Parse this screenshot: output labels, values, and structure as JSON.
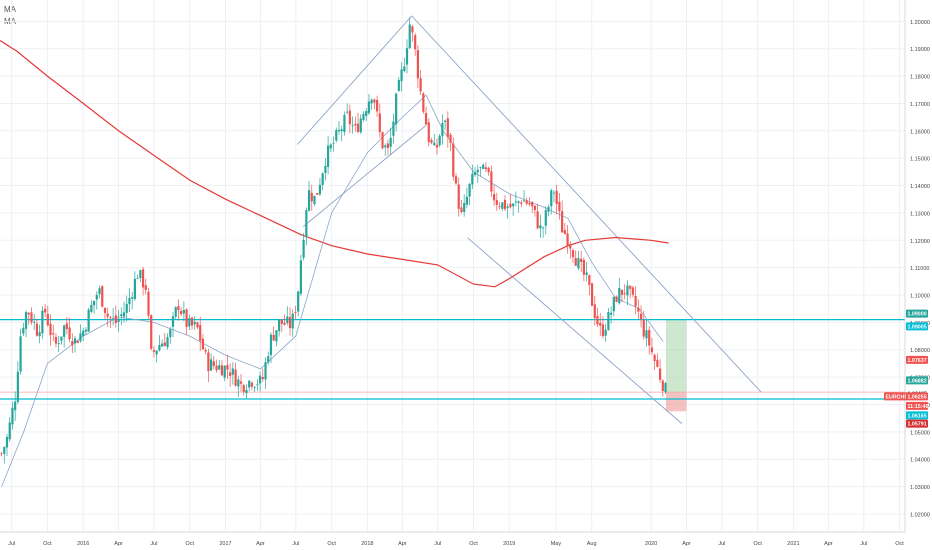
{
  "legend": {
    "ma1": "MA",
    "ma2": "MA"
  },
  "colors": {
    "up": "#26a69a",
    "down": "#ef5350",
    "ma_long": "#e53935",
    "ma_short": "#8aa6c7",
    "channel": "#90a4c8",
    "support": "#00bcd4",
    "grid": "#eef0f3"
  },
  "chart_data": {
    "type": "candlestick",
    "symbol": "EURCHF",
    "ylim": [
      1.0134,
      1.2078
    ],
    "xlim": [
      "2015-06-01",
      "2021-10-15"
    ],
    "yticks": [
      "1.20000",
      "1.19000",
      "1.18000",
      "1.17000",
      "1.16000",
      "1.15000",
      "1.14000",
      "1.13000",
      "1.12000",
      "1.11000",
      "1.10000",
      "1.09000",
      "1.08000",
      "1.07000",
      "1.06000",
      "1.05000",
      "1.04000",
      "1.03000",
      "1.02000"
    ],
    "xticks": [
      {
        "label": "Jul",
        "date": "2015-07-01"
      },
      {
        "label": "Oct",
        "date": "2015-10-01"
      },
      {
        "label": "2016",
        "date": "2016-01-01"
      },
      {
        "label": "Apr",
        "date": "2016-04-01"
      },
      {
        "label": "Jul",
        "date": "2016-07-01"
      },
      {
        "label": "Oct",
        "date": "2016-10-01"
      },
      {
        "label": "2017",
        "date": "2017-01-01"
      },
      {
        "label": "Apr",
        "date": "2017-04-01"
      },
      {
        "label": "Jul",
        "date": "2017-07-01"
      },
      {
        "label": "Oct",
        "date": "2017-10-01"
      },
      {
        "label": "2018",
        "date": "2018-01-01"
      },
      {
        "label": "Apr",
        "date": "2018-04-01"
      },
      {
        "label": "Jul",
        "date": "2018-07-01"
      },
      {
        "label": "Oct",
        "date": "2018-10-01"
      },
      {
        "label": "2019",
        "date": "2019-01-01"
      },
      {
        "label": "May",
        "date": "2019-05-01"
      },
      {
        "label": "Aug",
        "date": "2019-08-01"
      },
      {
        "label": "2020",
        "date": "2020-01-01"
      },
      {
        "label": "Apr",
        "date": "2020-04-01"
      },
      {
        "label": "Jul",
        "date": "2020-07-01"
      },
      {
        "label": "Oct",
        "date": "2020-10-01"
      },
      {
        "label": "2021",
        "date": "2021-01-01"
      },
      {
        "label": "Apr",
        "date": "2021-04-01"
      },
      {
        "label": "Jul",
        "date": "2021-07-01"
      },
      {
        "label": "Oct",
        "date": "2021-10-01"
      }
    ],
    "price_path": [
      [
        "2015-06-05",
        1.042
      ],
      [
        "2015-06-20",
        1.048
      ],
      [
        "2015-07-10",
        1.063
      ],
      [
        "2015-07-25",
        1.087
      ],
      [
        "2015-08-10",
        1.095
      ],
      [
        "2015-09-05",
        1.087
      ],
      [
        "2015-09-25",
        1.094
      ],
      [
        "2015-10-20",
        1.081
      ],
      [
        "2015-11-15",
        1.089
      ],
      [
        "2015-12-10",
        1.083
      ],
      [
        "2016-01-01",
        1.087
      ],
      [
        "2016-01-20",
        1.095
      ],
      [
        "2016-02-10",
        1.102
      ],
      [
        "2016-03-05",
        1.092
      ],
      [
        "2016-03-25",
        1.09
      ],
      [
        "2016-04-20",
        1.095
      ],
      [
        "2016-05-20",
        1.108
      ],
      [
        "2016-06-10",
        1.103
      ],
      [
        "2016-06-24",
        1.078
      ],
      [
        "2016-07-15",
        1.082
      ],
      [
        "2016-08-10",
        1.085
      ],
      [
        "2016-09-01",
        1.097
      ],
      [
        "2016-09-25",
        1.089
      ],
      [
        "2016-10-20",
        1.088
      ],
      [
        "2016-11-15",
        1.075
      ],
      [
        "2016-12-10",
        1.074
      ],
      [
        "2017-01-10",
        1.073
      ],
      [
        "2017-02-10",
        1.067
      ],
      [
        "2017-03-10",
        1.069
      ],
      [
        "2017-04-05",
        1.068
      ],
      [
        "2017-04-25",
        1.083
      ],
      [
        "2017-05-20",
        1.09
      ],
      [
        "2017-06-20",
        1.089
      ],
      [
        "2017-07-05",
        1.099
      ],
      [
        "2017-07-15",
        1.115
      ],
      [
        "2017-08-01",
        1.138
      ],
      [
        "2017-08-20",
        1.135
      ],
      [
        "2017-09-15",
        1.15
      ],
      [
        "2017-10-15",
        1.158
      ],
      [
        "2017-11-10",
        1.165
      ],
      [
        "2017-12-01",
        1.16
      ],
      [
        "2017-12-25",
        1.168
      ],
      [
        "2018-01-15",
        1.175
      ],
      [
        "2018-02-05",
        1.156
      ],
      [
        "2018-02-25",
        1.152
      ],
      [
        "2018-03-15",
        1.17
      ],
      [
        "2018-04-05",
        1.185
      ],
      [
        "2018-04-20",
        1.199
      ],
      [
        "2018-05-01",
        1.192
      ],
      [
        "2018-05-20",
        1.172
      ],
      [
        "2018-06-10",
        1.156
      ],
      [
        "2018-06-25",
        1.152
      ],
      [
        "2018-07-15",
        1.164
      ],
      [
        "2018-08-01",
        1.157
      ],
      [
        "2018-08-15",
        1.14
      ],
      [
        "2018-09-01",
        1.128
      ],
      [
        "2018-09-20",
        1.139
      ],
      [
        "2018-10-10",
        1.146
      ],
      [
        "2018-11-05",
        1.144
      ],
      [
        "2018-11-25",
        1.135
      ],
      [
        "2018-12-15",
        1.133
      ],
      [
        "2019-01-10",
        1.132
      ],
      [
        "2019-02-01",
        1.135
      ],
      [
        "2019-02-25",
        1.133
      ],
      [
        "2019-03-25",
        1.123
      ],
      [
        "2019-04-15",
        1.134
      ],
      [
        "2019-04-25",
        1.139
      ],
      [
        "2019-05-15",
        1.125
      ],
      [
        "2019-06-10",
        1.118
      ],
      [
        "2019-06-25",
        1.112
      ],
      [
        "2019-07-20",
        1.105
      ],
      [
        "2019-08-10",
        1.093
      ],
      [
        "2019-08-25",
        1.086
      ],
      [
        "2019-09-15",
        1.092
      ],
      [
        "2019-10-05",
        1.1
      ],
      [
        "2019-10-25",
        1.102
      ],
      [
        "2019-11-10",
        1.099
      ],
      [
        "2019-11-25",
        1.095
      ],
      [
        "2019-12-10",
        1.088
      ],
      [
        "2019-12-25",
        1.083
      ],
      [
        "2020-01-10",
        1.076
      ],
      [
        "2020-01-25",
        1.07
      ],
      [
        "2020-02-05",
        1.066
      ],
      [
        "2020-02-12",
        1.0625
      ]
    ],
    "ma_long": [
      [
        "2015-06-01",
        1.193
      ],
      [
        "2015-07-15",
        1.189
      ],
      [
        "2015-10-01",
        1.18
      ],
      [
        "2016-01-01",
        1.17
      ],
      [
        "2016-04-01",
        1.16
      ],
      [
        "2016-07-01",
        1.151
      ],
      [
        "2016-10-01",
        1.142
      ],
      [
        "2017-01-01",
        1.135
      ],
      [
        "2017-04-01",
        1.129
      ],
      [
        "2017-07-15",
        1.122
      ],
      [
        "2017-10-01",
        1.118
      ],
      [
        "2018-01-01",
        1.115
      ],
      [
        "2018-04-01",
        1.113
      ],
      [
        "2018-07-01",
        1.111
      ],
      [
        "2018-10-01",
        1.104
      ],
      [
        "2018-11-25",
        1.103
      ],
      [
        "2019-01-01",
        1.106
      ],
      [
        "2019-04-01",
        1.114
      ],
      [
        "2019-06-01",
        1.118
      ],
      [
        "2019-07-15",
        1.12
      ],
      [
        "2019-10-01",
        1.121
      ],
      [
        "2020-01-01",
        1.12
      ],
      [
        "2020-02-15",
        1.119
      ]
    ],
    "ma_short": [
      [
        "2015-06-05",
        1.03
      ],
      [
        "2015-08-01",
        1.05
      ],
      [
        "2015-10-01",
        1.075
      ],
      [
        "2016-01-01",
        1.085
      ],
      [
        "2016-04-01",
        1.092
      ],
      [
        "2016-07-01",
        1.09
      ],
      [
        "2016-10-01",
        1.085
      ],
      [
        "2017-01-01",
        1.078
      ],
      [
        "2017-04-01",
        1.073
      ],
      [
        "2017-07-01",
        1.085
      ],
      [
        "2017-10-01",
        1.13
      ],
      [
        "2018-01-01",
        1.152
      ],
      [
        "2018-04-01",
        1.165
      ],
      [
        "2018-06-01",
        1.173
      ],
      [
        "2018-07-15",
        1.16
      ],
      [
        "2018-10-01",
        1.145
      ],
      [
        "2019-01-01",
        1.137
      ],
      [
        "2019-04-01",
        1.132
      ],
      [
        "2019-06-01",
        1.128
      ],
      [
        "2019-08-01",
        1.112
      ],
      [
        "2019-10-01",
        1.099
      ],
      [
        "2019-12-01",
        1.095
      ],
      [
        "2020-02-01",
        1.083
      ]
    ],
    "channel_lines": [
      {
        "name": "upper-rise",
        "from": [
          "2017-07-05",
          1.155
        ],
        "to": [
          "2018-04-25",
          1.202
        ]
      },
      {
        "name": "lower-rise",
        "from": [
          "2017-07-20",
          1.125
        ],
        "to": [
          "2018-06-01",
          1.162
        ]
      },
      {
        "name": "upper-fall",
        "from": [
          "2018-04-25",
          1.202
        ],
        "to": [
          "2020-10-10",
          1.0645
        ]
      },
      {
        "name": "lower-fall",
        "from": [
          "2018-09-15",
          1.121
        ],
        "to": [
          "2020-03-20",
          1.053
        ]
      }
    ],
    "horizontal_lines": [
      {
        "name": "resistance-line",
        "y": 1.091,
        "color": "#00bcd4",
        "width": 1.3
      },
      {
        "name": "support-line",
        "y": 1.062,
        "color": "#00bcd4",
        "width": 1.3
      },
      {
        "name": "entry-line",
        "y": 1.0645,
        "color": "#f4a6a6",
        "width": 0.8
      }
    ],
    "position_box": {
      "x_from": "2020-02-08",
      "x_to": "2020-04-01",
      "target": 1.091,
      "entry": 1.0645,
      "stop": 1.0575
    },
    "price_labels": [
      {
        "text": "1.09000",
        "y": 1.091,
        "bg": "#26a69a",
        "fg": "#ffffff",
        "offset": -6
      },
      {
        "text": "1.09005",
        "y": 1.09,
        "bg": "#00bcd4",
        "fg": "#ffffff",
        "offset": 4
      },
      {
        "text": "1.07637",
        "y": 1.0763,
        "bg": "#ef5350",
        "fg": "#ffffff",
        "offset": 0
      },
      {
        "text": "1.06882",
        "y": 1.0688,
        "bg": "#26a69a",
        "fg": "#ffffff",
        "offset": 0
      },
      {
        "text": "1.06405",
        "y": 1.064,
        "bg": "#ffffff",
        "fg": "#333333",
        "offset": 0
      },
      {
        "text": "EURCHF",
        "y": 1.0615,
        "bg": "#ef5350",
        "fg": "#ffffff",
        "offset": -4,
        "width": 24,
        "xoff": -22
      },
      {
        "text": "1.06255",
        "y": 1.0615,
        "bg": "#ef5350",
        "fg": "#ffffff",
        "offset": -4
      },
      {
        "text": "11:15:46",
        "y": 1.0595,
        "bg": "#ef5350",
        "fg": "#ffffff",
        "offset": 0
      },
      {
        "text": "1.06165",
        "y": 1.056,
        "bg": "#00bcd4",
        "fg": "#ffffff",
        "offset": 0
      },
      {
        "text": "1.05791",
        "y": 1.053,
        "bg": "#d32f2f",
        "fg": "#ffffff",
        "offset": 0
      }
    ]
  }
}
